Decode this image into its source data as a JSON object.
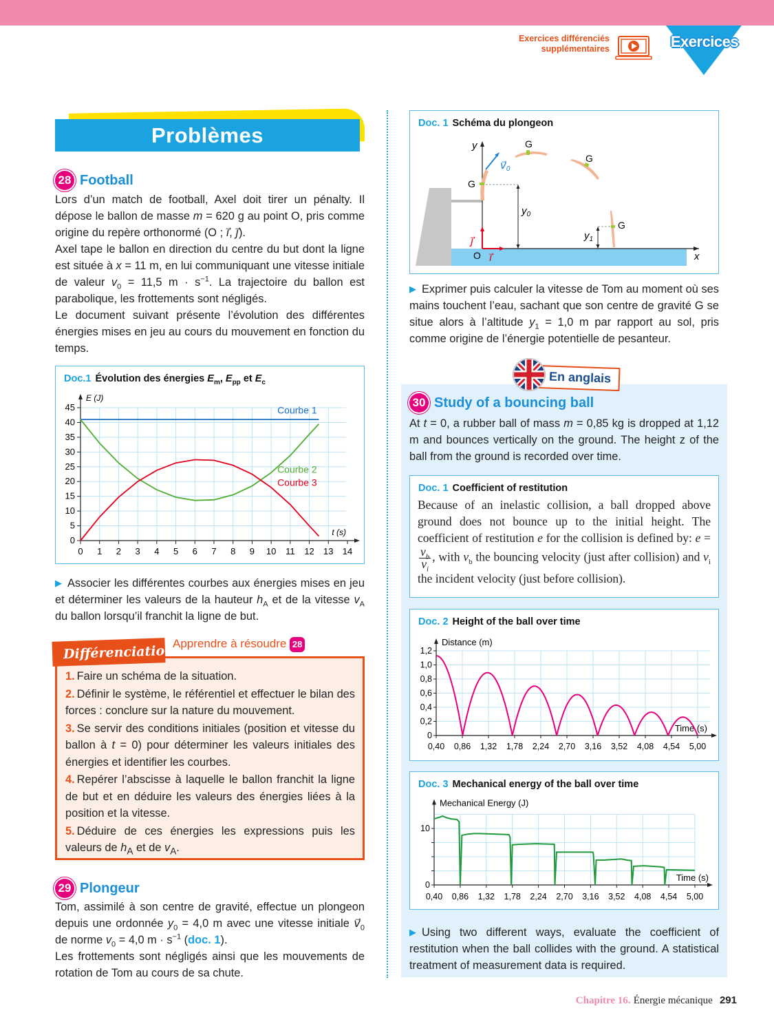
{
  "header": {
    "extra_line1": "Exercices différenciés",
    "extra_line2": "supplémentaires",
    "video_icon": "laptop-play-icon",
    "section_label": "Exercices"
  },
  "colors": {
    "pink_bar": "#f08aad",
    "blue": "#1aa3e0",
    "orange": "#e8501a",
    "magenta": "#e6007e",
    "light_blue_bg": "#e1f1fc",
    "diff_bg": "#fdeee6"
  },
  "banner": {
    "title": "Problèmes"
  },
  "ex28": {
    "number": "28",
    "title": "Football",
    "body": [
      [
        {
          "t": "Lors d’un match de football, Axel doit tirer un pénalty. Il dépose le ballon de masse "
        },
        {
          "i": "m"
        },
        {
          "t": " = 620 g au point O, pris comme origine du repère orthonormé (O ; "
        },
        {
          "i": "i⃗"
        },
        {
          "t": ", "
        },
        {
          "i": "j⃗"
        },
        {
          "t": ")."
        }
      ],
      [
        {
          "t": "Axel tape le ballon en direction du centre du but dont la ligne est située à "
        },
        {
          "i": "x"
        },
        {
          "t": " = 11 m, en lui communiquant une vitesse initiale de valeur "
        },
        {
          "i": "v"
        },
        {
          "sub": "0"
        },
        {
          "t": " = 11,5 m · s"
        },
        {
          "sup": "−1"
        },
        {
          "t": ". La trajectoire du ballon est parabolique, les frottements sont négligés."
        }
      ],
      [
        {
          "t": "Le document suivant présente l’évolution des différentes énergies mises en jeu au cours du mouvement en fonction du temps."
        }
      ]
    ],
    "doc": {
      "num": "Doc.1",
      "title_parts": [
        {
          "t": "Évolution des énergies "
        },
        {
          "i": "E"
        },
        {
          "sub": "m"
        },
        {
          "t": ", "
        },
        {
          "i": "E"
        },
        {
          "sub": "pp"
        },
        {
          "t": " et "
        },
        {
          "i": "E"
        },
        {
          "sub": "c"
        }
      ]
    },
    "question": [
      [
        {
          "t": "Associer les différentes courbes aux énergies mises en jeu et déterminer les valeurs de la hauteur "
        },
        {
          "i": "h"
        },
        {
          "sub": "A"
        },
        {
          "t": " et de la vitesse "
        },
        {
          "i": "v"
        },
        {
          "sub": "A"
        },
        {
          "t": " du ballon lorsqu’il franchit la ligne de but."
        }
      ]
    ]
  },
  "differenciation": {
    "tag": "Différenciation",
    "learn_label": "Apprendre à résoudre",
    "learn_badge": "28",
    "items": [
      {
        "num": "1.",
        "text": [
          {
            "t": "Faire un schéma de la situation."
          }
        ]
      },
      {
        "num": "2.",
        "text": [
          {
            "t": "Définir le système, le référentiel et effectuer le bilan des forces : conclure sur la nature du mouvement."
          }
        ]
      },
      {
        "num": "3.",
        "text": [
          {
            "t": "Se servir des conditions initiales (position et vitesse du ballon à "
          },
          {
            "i": "t"
          },
          {
            "t": " = 0) pour déterminer les valeurs initiales des énergies et identifier les courbes."
          }
        ]
      },
      {
        "num": "4.",
        "text": [
          {
            "t": "Repérer l’abscisse à laquelle le ballon franchit la ligne de but et en déduire les valeurs des énergies liées à la position et la vitesse."
          }
        ]
      },
      {
        "num": "5.",
        "text": [
          {
            "t": "Déduire de ces énergies les expressions puis les valeurs de "
          },
          {
            "i": "h"
          },
          {
            "sub": "A"
          },
          {
            "t": " et de "
          },
          {
            "i": "v"
          },
          {
            "sub": "A"
          },
          {
            "t": "."
          }
        ]
      }
    ]
  },
  "ex29": {
    "number": "29",
    "title": "Plongeur",
    "body": [
      [
        {
          "t": "Tom, assimilé à son centre de gravité, effectue un plongeon depuis une ordonnée "
        },
        {
          "i": "y"
        },
        {
          "sub": "0"
        },
        {
          "t": " = 4,0 m avec une vitesse initiale "
        },
        {
          "i": "v⃗"
        },
        {
          "sub": "0"
        },
        {
          "t": " de norme "
        },
        {
          "i": "v"
        },
        {
          "sub": "0"
        },
        {
          "t": " = 4,0 m · s"
        },
        {
          "sup": "−1"
        },
        {
          "t": " ("
        },
        {
          "link": "doc. 1"
        },
        {
          "t": ")."
        }
      ],
      [
        {
          "t": "Les frottements sont négligés ainsi que les mouvements de rotation de Tom au cours de sa chute."
        }
      ]
    ],
    "doc": {
      "num": "Doc. 1",
      "title": "Schéma du plongeon",
      "labels": {
        "y_axis": "y",
        "x_axis": "x",
        "origin": "O",
        "g": "G",
        "v0": "v⃗",
        "v0_sub": "0",
        "y0": "y",
        "y0_sub": "0",
        "y1": "y",
        "y1_sub": "1",
        "i": "i⃗",
        "j": "j⃗"
      }
    },
    "question": [
      [
        {
          "t": "Exprimer puis calculer la vitesse de Tom au moment où ses mains touchent l’eau, sachant que son centre de gravité G se situe alors à l’altitude "
        },
        {
          "i": "y"
        },
        {
          "sub": "1"
        },
        {
          "t": " = 1,0 m par rapport au sol, pris comme origine de l’énergie potentielle de pesanteur."
        }
      ]
    ]
  },
  "ex30": {
    "tag": "En anglais",
    "flag_icon": "uk-flag-icon",
    "number": "30",
    "title": "Study of a bouncing ball",
    "body": [
      [
        {
          "t": "At "
        },
        {
          "i": "t"
        },
        {
          "t": " = 0, a rubber ball of mass "
        },
        {
          "i": "m"
        },
        {
          "t": " = 0,85 kg is dropped at 1,12 m and bounces vertically on the ground. The height z of the ball from the ground is recorded over time."
        }
      ]
    ],
    "doc1": {
      "num": "Doc. 1",
      "title": "Coefficient of restitution",
      "body": [
        [
          {
            "t": "Because of an inelastic collision, a ball dropped above ground does not bounce up to the initial height. The coefficient of restitution "
          },
          {
            "i": "e"
          },
          {
            "t": " for the collision is defined by: "
          },
          {
            "i": "e"
          },
          {
            "t": " = "
          },
          {
            "frac": {
              "num": "v",
              "num_sub": "b",
              "den": "v",
              "den_sub": "i"
            }
          },
          {
            "t": ", with "
          },
          {
            "i": "v"
          },
          {
            "sub": "b"
          },
          {
            "t": " the bouncing velocity (just after collision) and "
          },
          {
            "i": "v"
          },
          {
            "sub": "i"
          },
          {
            "t": " the incident velocity (just before collision)."
          }
        ]
      ]
    },
    "doc2": {
      "num": "Doc. 2",
      "title": "Height of the ball over time"
    },
    "doc3": {
      "num": "Doc. 3",
      "title": "Mechanical energy of the ball over time"
    },
    "question": [
      [
        {
          "t": "Using two different ways, evaluate the coefficient of restitution when the ball collides with the ground. A statistical treatment of measurement data is required."
        }
      ]
    ]
  },
  "footer": {
    "chapter": "Chapitre 16.",
    "title": "Énergie mécanique",
    "page": "291"
  },
  "chart_data": [
    {
      "type": "line",
      "xlabel": "t (s)",
      "ylabel": "E (J)",
      "xlim": [
        0,
        14
      ],
      "ylim": [
        0,
        45
      ],
      "xticks": [
        0,
        1,
        2,
        3,
        4,
        5,
        6,
        7,
        8,
        9,
        10,
        11,
        12,
        13,
        14
      ],
      "yticks": [
        0,
        5,
        10,
        15,
        20,
        25,
        30,
        35,
        40,
        45
      ],
      "grid": true,
      "x": [
        0,
        1,
        2,
        3,
        4,
        5,
        6,
        7,
        8,
        9,
        10,
        11,
        12,
        12.5
      ],
      "series": [
        {
          "name": "Courbe 1",
          "color": "#1a6fc4",
          "values": [
            41,
            41,
            41,
            41,
            41,
            41,
            41,
            41,
            41,
            41,
            41,
            41,
            41,
            41
          ]
        },
        {
          "name": "Courbe 2",
          "color": "#4fae32",
          "values": [
            41,
            33.0,
            26.3,
            21.0,
            17.2,
            14.7,
            13.6,
            13.8,
            15.5,
            18.5,
            23.0,
            28.8,
            36.0,
            39.5
          ]
        },
        {
          "name": "Courbe 3",
          "color": "#e3001b",
          "values": [
            0,
            8.0,
            14.7,
            20.0,
            23.8,
            26.3,
            27.4,
            27.2,
            25.5,
            22.5,
            18.0,
            12.2,
            5.0,
            1.5
          ]
        }
      ]
    },
    {
      "type": "line",
      "xlabel": "Time (s)",
      "ylabel": "Distance (m)",
      "xlim": [
        0.4,
        5.0
      ],
      "ylim": [
        0,
        1.2
      ],
      "xticks": [
        "0,40",
        "0,86",
        "1,32",
        "1,78",
        "2,24",
        "2,70",
        "3,16",
        "3,52",
        "4,08",
        "4,54",
        "5,00"
      ],
      "yticks": [
        "0",
        "0,2",
        "0,4",
        "0,6",
        "0,8",
        "1,0",
        "1,2"
      ],
      "grid": true,
      "color": "#e6007e",
      "impacts_s": [
        0.865,
        1.74,
        2.52,
        3.24,
        3.89,
        4.48,
        5.0
      ],
      "peaks": [
        {
          "t": 0.4,
          "z": 1.13
        },
        {
          "t": 1.3,
          "z": 0.89
        },
        {
          "t": 2.13,
          "z": 0.7
        },
        {
          "t": 2.88,
          "z": 0.58
        },
        {
          "t": 3.565,
          "z": 0.43
        },
        {
          "t": 4.185,
          "z": 0.33
        },
        {
          "t": 4.74,
          "z": 0.26
        }
      ]
    },
    {
      "type": "line",
      "xlabel": "Time (s)",
      "ylabel": "Mechanical Energy (J)",
      "xlim": [
        0.4,
        5.0
      ],
      "ylim": [
        0,
        12.5
      ],
      "xticks": [
        "0,40",
        "0,86",
        "1,32",
        "1,78",
        "2,24",
        "2,70",
        "3,16",
        "3,52",
        "4,08",
        "4,54",
        "5,00"
      ],
      "yticks": [
        "0",
        "10"
      ],
      "grid": true,
      "color": "#1e9a3c",
      "points": [
        [
          0.4,
          11.7
        ],
        [
          0.5,
          12.0
        ],
        [
          0.55,
          12.2
        ],
        [
          0.62,
          11.9
        ],
        [
          0.7,
          11.7
        ],
        [
          0.8,
          11.6
        ],
        [
          0.84,
          11.2
        ],
        [
          0.86,
          0
        ],
        [
          0.89,
          8.8
        ],
        [
          1.0,
          9.0
        ],
        [
          1.1,
          9.1
        ],
        [
          1.2,
          9.1
        ],
        [
          1.5,
          9.0
        ],
        [
          1.72,
          8.9
        ],
        [
          1.74,
          8.4
        ],
        [
          1.76,
          0
        ],
        [
          1.78,
          7.1
        ],
        [
          1.9,
          7.2
        ],
        [
          2.2,
          7.3
        ],
        [
          2.52,
          7.2
        ],
        [
          2.53,
          0
        ],
        [
          2.56,
          5.8
        ],
        [
          3.2,
          5.8
        ],
        [
          3.21,
          5.5
        ],
        [
          3.24,
          0
        ],
        [
          3.26,
          4.4
        ],
        [
          3.4,
          4.4
        ],
        [
          3.7,
          4.6
        ],
        [
          3.8,
          4.4
        ],
        [
          3.88,
          4.3
        ],
        [
          3.89,
          0
        ],
        [
          3.92,
          3.3
        ],
        [
          4.1,
          3.4
        ],
        [
          4.4,
          3.2
        ],
        [
          4.46,
          3.1
        ],
        [
          4.47,
          0
        ],
        [
          4.5,
          2.7
        ],
        [
          5.0,
          2.6
        ]
      ]
    }
  ]
}
